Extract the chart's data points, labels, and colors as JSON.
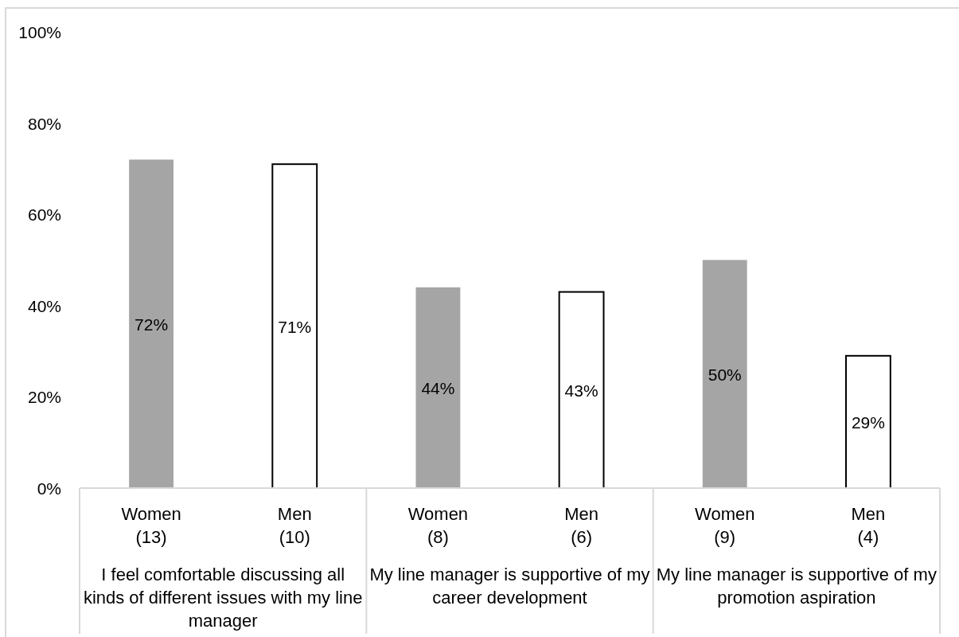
{
  "chart_data": {
    "type": "bar",
    "categories": [
      "Women (13)",
      "Men (10)",
      "Women (8)",
      "Men (6)",
      "Women (9)",
      "Men (4)"
    ],
    "values": [
      72,
      71,
      44,
      43,
      50,
      29
    ],
    "colors": [
      "#a5a5a5",
      "#ffffff",
      "#a5a5a5",
      "#ffffff",
      "#a5a5a5",
      "#ffffff"
    ],
    "value_labels": [
      "72%",
      "71%",
      "44%",
      "43%",
      "50%",
      "29%"
    ],
    "ylim": [
      0,
      100
    ],
    "yticks": [
      {
        "value": 0,
        "label": "0%"
      },
      {
        "value": 20,
        "label": "20%"
      },
      {
        "value": 40,
        "label": "40%"
      },
      {
        "value": 60,
        "label": "60%"
      },
      {
        "value": 80,
        "label": "80%"
      },
      {
        "value": 100,
        "label": "100%"
      }
    ],
    "annotations": [
      "I feel comfortable discussing all kinds of different issues with my line manager",
      "My line manager is supportive of my career development",
      "My line manager is supportive of my promotion aspiration"
    ]
  }
}
